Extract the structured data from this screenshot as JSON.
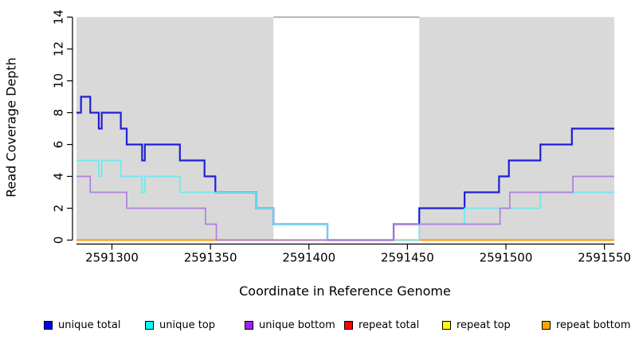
{
  "chart_data": {
    "type": "line",
    "title": "",
    "xlabel": "Coordinate in Reference Genome",
    "ylabel": "Read Coverage Depth",
    "xlim": [
      2591282,
      2591555
    ],
    "ylim": [
      0,
      14
    ],
    "x_ticks": [
      2591300,
      2591350,
      2591400,
      2591450,
      2591500,
      2591550
    ],
    "y_ticks": [
      0,
      2,
      4,
      6,
      8,
      10,
      12,
      14
    ],
    "grid": false,
    "shaded_regions": [
      {
        "x0": 2591282,
        "x1": 2591382,
        "color": "#d9d9d9"
      },
      {
        "x0": 2591456,
        "x1": 2591555,
        "color": "#d9d9d9"
      }
    ],
    "gap_top_line": {
      "x0": 2591382,
      "x1": 2591456,
      "y": 14,
      "color": "#9a9a9a"
    },
    "series": [
      {
        "name": "repeat total",
        "color": "#e02020",
        "width": 1.6,
        "steps": [
          [
            2591282,
            0
          ]
        ]
      },
      {
        "name": "repeat top",
        "color": "#ffff00",
        "width": 1.6,
        "steps": [
          [
            2591282,
            0
          ]
        ]
      },
      {
        "name": "repeat bottom",
        "color": "#ff9f1a",
        "width": 2.2,
        "steps": [
          [
            2591282,
            0
          ]
        ]
      },
      {
        "name": "unique total",
        "color": "#1f1fd8",
        "width": 2.2,
        "steps": [
          [
            2591282,
            8
          ],
          [
            2591284.3,
            9
          ],
          [
            2591289,
            8
          ],
          [
            2591293.3,
            7
          ],
          [
            2591294.8,
            8
          ],
          [
            2591304.5,
            7
          ],
          [
            2591307.5,
            6
          ],
          [
            2591315.3,
            5
          ],
          [
            2591316.7,
            6
          ],
          [
            2591334.5,
            5
          ],
          [
            2591347,
            4
          ],
          [
            2591352.5,
            3
          ],
          [
            2591373.3,
            2
          ],
          [
            2591382,
            1
          ],
          [
            2591409.4,
            0
          ],
          [
            2591443,
            1
          ],
          [
            2591456,
            2
          ],
          [
            2591479,
            3
          ],
          [
            2591496.5,
            4
          ],
          [
            2591501.5,
            5
          ],
          [
            2591517.5,
            6
          ],
          [
            2591533.5,
            7
          ]
        ]
      },
      {
        "name": "unique top",
        "color": "#6fe9ee",
        "width": 1.8,
        "steps": [
          [
            2591282,
            5
          ],
          [
            2591293.3,
            4
          ],
          [
            2591294.8,
            5
          ],
          [
            2591304.5,
            4
          ],
          [
            2591315.3,
            3
          ],
          [
            2591316.7,
            4
          ],
          [
            2591334.5,
            3
          ],
          [
            2591373.3,
            2
          ],
          [
            2591382,
            1
          ],
          [
            2591409.4,
            0
          ],
          [
            2591456,
            1
          ],
          [
            2591479,
            2
          ],
          [
            2591517.5,
            3
          ]
        ]
      },
      {
        "name": "unique bottom",
        "color": "#b07fdc",
        "width": 1.7,
        "steps": [
          [
            2591282,
            4
          ],
          [
            2591289,
            3
          ],
          [
            2591307.5,
            2
          ],
          [
            2591347.5,
            1
          ],
          [
            2591353,
            0
          ],
          [
            2591443,
            1
          ],
          [
            2591497,
            2
          ],
          [
            2591502,
            3
          ],
          [
            2591534,
            4
          ]
        ]
      }
    ],
    "legend": [
      {
        "label": "unique total",
        "color": "#0000ff"
      },
      {
        "label": "unique top",
        "color": "#00ffff"
      },
      {
        "label": "unique bottom",
        "color": "#a020f0"
      },
      {
        "label": "repeat total",
        "color": "#ff0000"
      },
      {
        "label": "repeat top",
        "color": "#ffff00"
      },
      {
        "label": "repeat bottom",
        "color": "#ffa500"
      }
    ]
  }
}
